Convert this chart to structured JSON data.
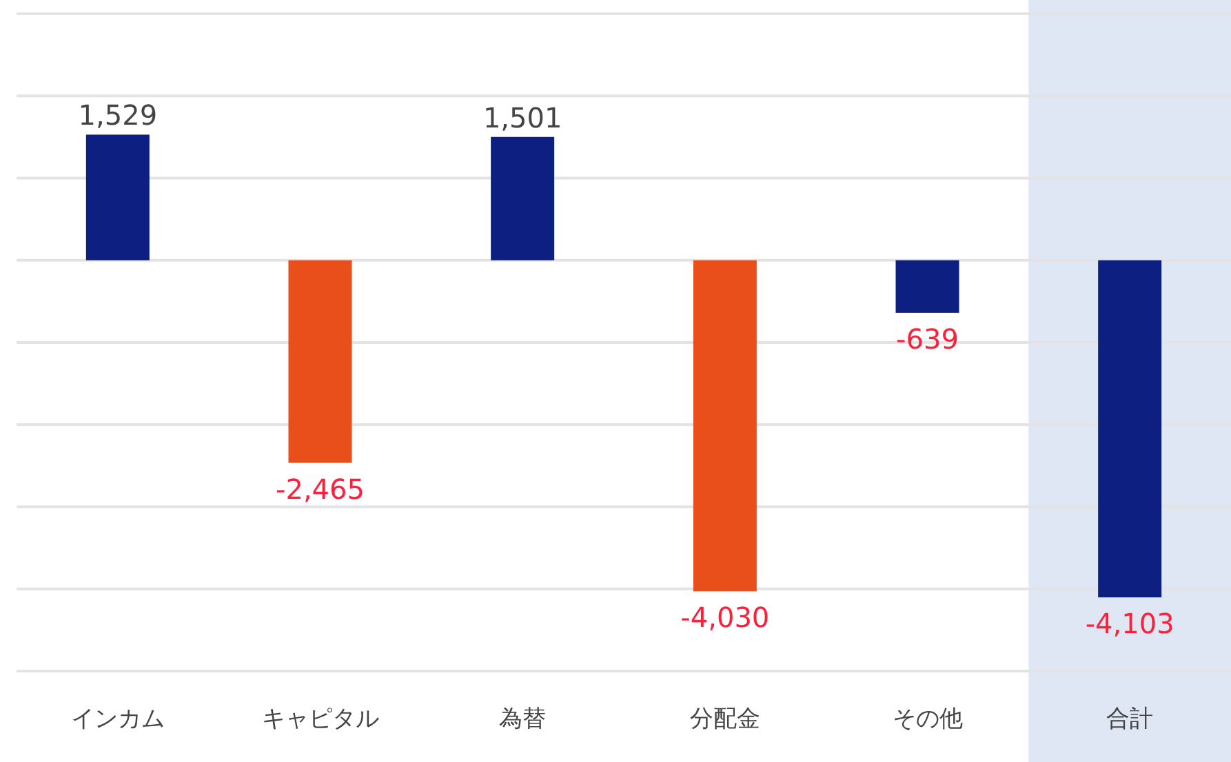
{
  "chart_data": {
    "type": "bar",
    "categories": [
      "インカム",
      "キャピタル",
      "為替",
      "分配金",
      "その他",
      "合計"
    ],
    "values": [
      1529,
      -2465,
      1501,
      -4030,
      -639,
      -4103
    ],
    "colors": [
      "#0d1f80",
      "#e84f1b",
      "#0d1f80",
      "#e84f1b",
      "#0d1f80",
      "#0d1f80"
    ],
    "value_labels": [
      "1,529",
      "-2,465",
      "1,501",
      "-4,030",
      "-639",
      "-4,103"
    ],
    "ylim": [
      -5000,
      3000
    ],
    "yticks": [
      {
        "value": -5000,
        "label": null
      },
      {
        "value": -4000,
        "label": null
      },
      {
        "value": -3000,
        "label": null
      },
      {
        "value": -2000,
        "label": null
      },
      {
        "value": -1000,
        "label": null
      },
      {
        "value": 0,
        "label": null
      },
      {
        "value": 1000,
        "label": null
      },
      {
        "value": 2000,
        "label": null
      },
      {
        "value": 3000,
        "label": null
      }
    ],
    "tick_labels": "x",
    "grid": "y",
    "bands": [
      {
        "axis": "x",
        "from": "合計",
        "to": "合計",
        "color": "#dfe7f5"
      }
    ]
  }
}
